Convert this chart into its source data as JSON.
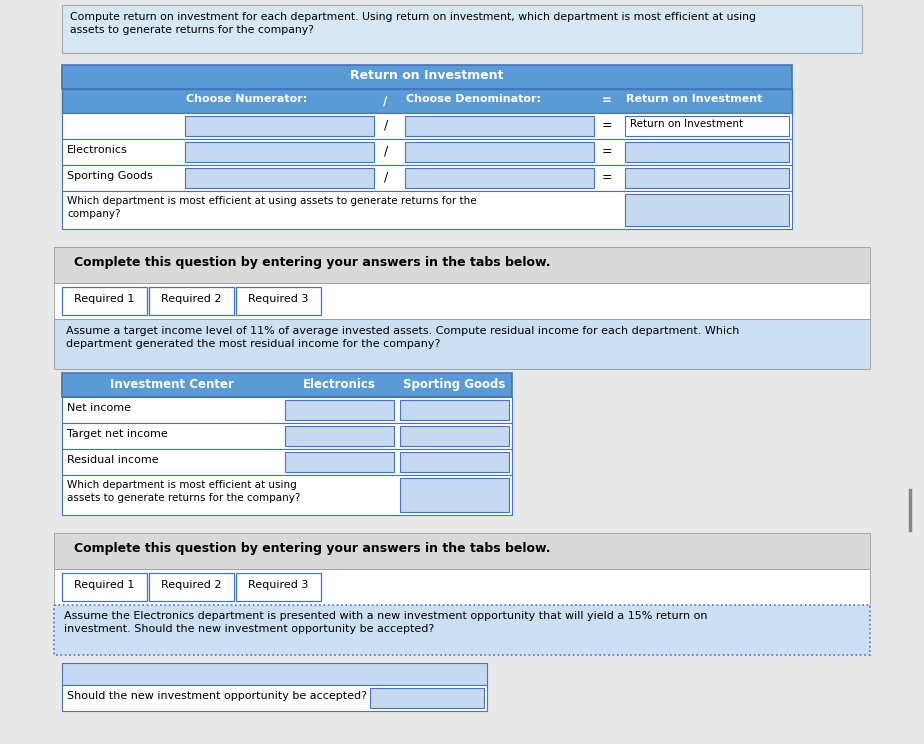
{
  "bg_color": "#e8e8e8",
  "white": "#ffffff",
  "blue_header": "#5b9bd5",
  "blue_light": "#cce0f5",
  "blue_input": "#c5d9f1",
  "blue_tab_active": "#b8cce4",
  "gray_banner": "#d9d9d9",
  "border_blue": "#4472c4",
  "border_gray": "#999999",
  "text_black": "#000000",
  "text_white": "#ffffff",
  "desc1": "Compute return on investment for each department. Using return on investment, which department is most efficient at using\nassets to generate returns for the company?",
  "roi_header": "Return on Investment",
  "col1_hdr": "Choose Numerator:",
  "col3_hdr": "Choose Denominator:",
  "col5_hdr": "Return on Investment",
  "row0_result_text": "Return on Investment",
  "row1_label": "Electronics",
  "row2_label": "Sporting Goods",
  "row3_label": "Which department is most efficient at using assets to generate returns for the\ncompany?",
  "complete1": "Complete this question by entering your answers in the tabs below.",
  "tab1a": "Required 1",
  "tab1b": "Required 2",
  "tab1c": "Required 3",
  "desc2": "Assume a target income level of 11% of average invested assets. Compute residual income for each department. Which\ndepartment generated the most residual income for the company?",
  "t2c1": "Investment Center",
  "t2c2": "Electronics",
  "t2c3": "Sporting Goods",
  "t2rows": [
    "Net income",
    "Target net income",
    "Residual income"
  ],
  "t2last": "Which department is most efficient at using\nassets to generate returns for the company?",
  "complete2": "Complete this question by entering your answers in the tabs below.",
  "tab2a": "Required 1",
  "tab2b": "Required 2",
  "tab2c": "Required 3",
  "desc3": "Assume the Electronics department is presented with a new investment opportunity that will yield a 15% return on\ninvestment. Should the new investment opportunity be accepted?",
  "t3row": "Should the new investment opportunity be accepted?"
}
